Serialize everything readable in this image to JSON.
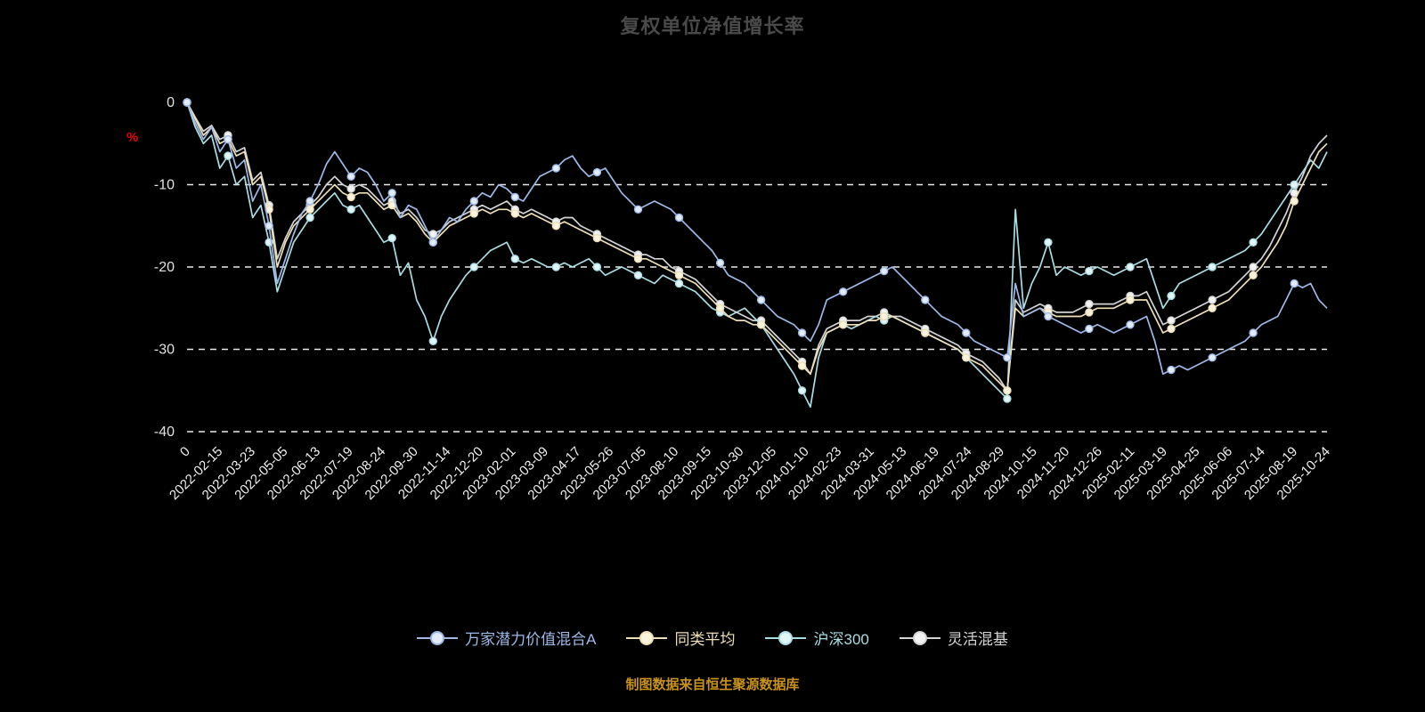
{
  "chart_data": {
    "type": "line",
    "title": "复权单位净值增长率",
    "source_note": "制图数据来自恒生聚源数据库",
    "y_unit": "%",
    "ylim": [
      -40,
      0
    ],
    "yticks": [
      0,
      -10,
      -20,
      -30,
      -40
    ],
    "grid": "dashed-white-horizontal",
    "legend_position": "bottom",
    "background_color": "#000000",
    "xticks": [
      "0",
      "2022-02-15",
      "2022-03-23",
      "2022-05-05",
      "2022-06-13",
      "2022-07-19",
      "2022-08-24",
      "2022-09-30",
      "2022-11-14",
      "2022-12-20",
      "2023-02-01",
      "2023-03-09",
      "2023-04-17",
      "2023-05-26",
      "2023-07-05",
      "2023-08-10",
      "2023-09-15",
      "2023-10-30",
      "2023-12-05",
      "2024-01-10",
      "2024-02-23",
      "2024-03-31",
      "2024-05-13",
      "2024-06-19",
      "2024-07-24",
      "2024-08-29",
      "2024-10-15",
      "2024-11-20",
      "2024-12-26",
      "2025-02-11",
      "2025-03-19",
      "2025-04-25",
      "2025-06-06",
      "2025-07-14",
      "2025-08-19",
      "2025-10-24"
    ],
    "series": [
      {
        "name": "万家潜力价值混合A",
        "color": "#9db9e8",
        "marker_fill": "#e3ecfa",
        "values": [
          0,
          -2.5,
          -4.5,
          -3,
          -6,
          -4.5,
          -8,
          -7,
          -12,
          -10,
          -15,
          -22,
          -19,
          -16,
          -13.5,
          -12,
          -10,
          -7.5,
          -6,
          -7.5,
          -9,
          -8,
          -8.5,
          -10,
          -12,
          -11,
          -14,
          -12.5,
          -13,
          -15,
          -17,
          -15.5,
          -14,
          -14.5,
          -13,
          -12,
          -11,
          -11.5,
          -10,
          -10.5,
          -11.5,
          -12,
          -10.5,
          -9,
          -8.5,
          -8,
          -7,
          -6.5,
          -8,
          -9,
          -8.5,
          -8,
          -9.5,
          -11,
          -12,
          -13,
          -12.5,
          -12,
          -12.5,
          -13,
          -14,
          -15,
          -16,
          -17,
          -18,
          -19.5,
          -21,
          -21.5,
          -22,
          -23,
          -24,
          -25,
          -26,
          -26.5,
          -27,
          -28,
          -29,
          -27,
          -24,
          -23.5,
          -23,
          -22.5,
          -22,
          -21.5,
          -21,
          -20.5,
          -20,
          -21,
          -22,
          -23,
          -24,
          -25,
          -26,
          -26.5,
          -27,
          -28,
          -29,
          -29.5,
          -30,
          -30.5,
          -31,
          -22,
          -26,
          -25.5,
          -25,
          -26,
          -26.5,
          -27,
          -27.5,
          -28,
          -27.5,
          -27,
          -27.5,
          -28,
          -27.5,
          -27,
          -26.5,
          -26,
          -29,
          -33,
          -32.5,
          -32,
          -32.5,
          -32,
          -31.5,
          -31,
          -30.5,
          -30,
          -29.5,
          -29,
          -28,
          -27,
          -26.5,
          -26,
          -24,
          -22,
          -22.5,
          -22,
          -24,
          -25
        ]
      },
      {
        "name": "同类平均",
        "color": "#eedfb5",
        "marker_fill": "#faf4df",
        "values": [
          0,
          -2,
          -4,
          -3,
          -5,
          -4.5,
          -6.5,
          -6,
          -10,
          -9,
          -13,
          -20,
          -17,
          -15,
          -14,
          -13,
          -12,
          -11,
          -10,
          -11,
          -11.5,
          -11,
          -11,
          -12,
          -13,
          -12.5,
          -14,
          -13.5,
          -14.5,
          -16,
          -17,
          -16,
          -15,
          -14.5,
          -14,
          -13.5,
          -13,
          -13.5,
          -13,
          -13,
          -13.5,
          -14,
          -13.5,
          -14,
          -14.5,
          -15,
          -14.5,
          -15,
          -15.5,
          -16,
          -16.5,
          -17,
          -17.5,
          -18,
          -18.5,
          -19,
          -19,
          -19.5,
          -20,
          -20.5,
          -21,
          -21.5,
          -22,
          -23,
          -24,
          -25,
          -26,
          -26.5,
          -26.5,
          -27,
          -27,
          -28,
          -29,
          -30,
          -31,
          -32,
          -33,
          -30,
          -28,
          -27.5,
          -27,
          -27,
          -27,
          -26.5,
          -26.5,
          -26,
          -26,
          -26.5,
          -27,
          -27.5,
          -28,
          -28.5,
          -29,
          -29.5,
          -30,
          -31,
          -31.5,
          -32,
          -33,
          -34,
          -35,
          -25,
          -26,
          -25.5,
          -25,
          -25.5,
          -26,
          -26,
          -26,
          -26,
          -25.5,
          -25,
          -25,
          -25,
          -24.5,
          -24,
          -24,
          -24,
          -26,
          -28,
          -27.5,
          -27,
          -26.5,
          -26,
          -25.5,
          -25,
          -24.5,
          -24,
          -23,
          -22,
          -21,
          -20,
          -18.5,
          -17,
          -15,
          -12,
          -10,
          -8,
          -6,
          -5
        ]
      },
      {
        "name": "沪深300",
        "color": "#a9dde4",
        "marker_fill": "#e2f6f8",
        "values": [
          0,
          -3,
          -5,
          -4,
          -8,
          -6.5,
          -10,
          -9,
          -14,
          -12.5,
          -17,
          -23,
          -20,
          -17,
          -15.5,
          -14,
          -13,
          -12,
          -11,
          -12.5,
          -13,
          -12.5,
          -14,
          -15.5,
          -17,
          -16.5,
          -21,
          -19.5,
          -24,
          -26,
          -29,
          -26,
          -24,
          -22.5,
          -21,
          -20,
          -19,
          -18,
          -17.5,
          -17,
          -19,
          -19.5,
          -19,
          -19.5,
          -20,
          -20,
          -19.5,
          -20,
          -19.5,
          -19,
          -20,
          -21,
          -20.5,
          -20,
          -20.5,
          -21,
          -21.5,
          -22,
          -21,
          -21.5,
          -22,
          -22.5,
          -23,
          -24,
          -25,
          -25.5,
          -26,
          -25.5,
          -25,
          -26,
          -27,
          -28.5,
          -30,
          -31.5,
          -33,
          -35,
          -37,
          -31,
          -28,
          -27.5,
          -27,
          -27.5,
          -27,
          -26.5,
          -26,
          -26.5,
          -26,
          -26.5,
          -27,
          -27.5,
          -28,
          -28.5,
          -29,
          -29.5,
          -30,
          -31,
          -32,
          -33,
          -34,
          -35,
          -36,
          -13,
          -25,
          -22,
          -20,
          -17,
          -21,
          -20,
          -20.5,
          -21,
          -20.5,
          -20,
          -20.5,
          -21,
          -20.5,
          -20,
          -19.5,
          -19,
          -22,
          -25,
          -23.5,
          -22,
          -21.5,
          -21,
          -20.5,
          -20,
          -19.5,
          -19,
          -18.5,
          -18,
          -17,
          -16,
          -14.5,
          -13,
          -11.5,
          -10,
          -8.5,
          -7,
          -8,
          -6
        ]
      },
      {
        "name": "灵活混基",
        "color": "#d4d4d4",
        "marker_fill": "#f2f2f2",
        "values": [
          0,
          -1.8,
          -3.5,
          -2.8,
          -4.5,
          -4,
          -6,
          -5.5,
          -9.5,
          -8.5,
          -12.5,
          -19,
          -16.5,
          -14.5,
          -13.5,
          -12.5,
          -11.5,
          -10,
          -9,
          -10,
          -10.5,
          -10,
          -10.5,
          -11.5,
          -12.5,
          -12,
          -13.5,
          -13,
          -14,
          -15.5,
          -16,
          -15.5,
          -14.5,
          -14,
          -13.5,
          -13,
          -12.5,
          -13,
          -12.5,
          -12,
          -13,
          -13.5,
          -13,
          -13.5,
          -14,
          -14.5,
          -14,
          -14,
          -15,
          -15.5,
          -16,
          -16.5,
          -17,
          -17.5,
          -18,
          -18.5,
          -18.5,
          -19,
          -19,
          -20,
          -20.5,
          -21,
          -21.5,
          -22.5,
          -23.5,
          -24.5,
          -25,
          -25.5,
          -26,
          -26.5,
          -26.5,
          -27.5,
          -28.5,
          -29.5,
          -30.5,
          -31.5,
          -33,
          -29.5,
          -27.5,
          -27,
          -26.5,
          -26.5,
          -26.5,
          -26,
          -26,
          -25.5,
          -26,
          -26,
          -26.5,
          -27,
          -27.5,
          -28,
          -28.5,
          -29,
          -29.5,
          -30.5,
          -31,
          -31.5,
          -32.5,
          -33.5,
          -35,
          -24,
          -25.5,
          -25,
          -24.5,
          -25,
          -25.5,
          -25.5,
          -25.5,
          -25,
          -24.5,
          -24.5,
          -24.5,
          -24.5,
          -24,
          -23.5,
          -23.5,
          -23,
          -25,
          -27,
          -26.5,
          -26,
          -25.5,
          -25,
          -24.5,
          -24,
          -23.5,
          -23,
          -22,
          -21,
          -20,
          -19,
          -17.5,
          -15.5,
          -13.5,
          -11,
          -9,
          -6.5,
          -5,
          -4
        ]
      }
    ],
    "style": {
      "gridline_color": "#eaeaea",
      "x_label_color": "#f0f0f0",
      "y_label_color": "#e2e2e2",
      "title_color": "#4a4a4a",
      "unit_color": "#e60000",
      "source_color": "#c8921a"
    }
  }
}
